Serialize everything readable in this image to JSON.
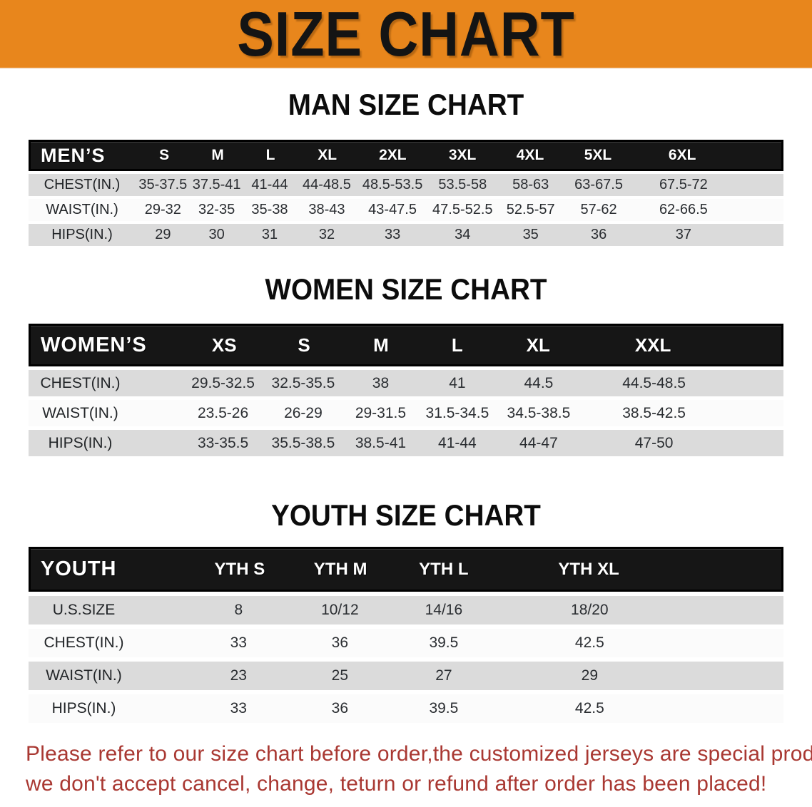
{
  "banner": {
    "title": "SIZE CHART",
    "bg_color": "#E8861C"
  },
  "sections": [
    {
      "id": "men",
      "heading": "MAN SIZE CHART",
      "corner": "MEN’S",
      "columns": [
        "S",
        "M",
        "L",
        "XL",
        "2XL",
        "3XL",
        "4XL",
        "5XL",
        "6XL"
      ],
      "rows": [
        {
          "label": "CHEST(IN.)",
          "values": [
            "35-37.5",
            "37.5-41",
            "41-44",
            "44-48.5",
            "48.5-53.5",
            "53.5-58",
            "58-63",
            "63-67.5",
            "67.5-72"
          ]
        },
        {
          "label": "WAIST(IN.)",
          "values": [
            "29-32",
            "32-35",
            "35-38",
            "38-43",
            "43-47.5",
            "47.5-52.5",
            "52.5-57",
            "57-62",
            "62-66.5"
          ]
        },
        {
          "label": "HIPS(IN.)",
          "values": [
            "29",
            "30",
            "31",
            "32",
            "33",
            "34",
            "35",
            "36",
            "37"
          ]
        }
      ]
    },
    {
      "id": "women",
      "heading": "WOMEN SIZE CHART",
      "corner": "WOMEN’S",
      "columns": [
        "XS",
        "S",
        "M",
        "L",
        "XL",
        "XXL"
      ],
      "rows": [
        {
          "label": "CHEST(IN.)",
          "values": [
            "29.5-32.5",
            "32.5-35.5",
            "38",
            "41",
            "44.5",
            "44.5-48.5"
          ]
        },
        {
          "label": "WAIST(IN.)",
          "values": [
            "23.5-26",
            "26-29",
            "29-31.5",
            "31.5-34.5",
            "34.5-38.5",
            "38.5-42.5"
          ]
        },
        {
          "label": "HIPS(IN.)",
          "values": [
            "33-35.5",
            "35.5-38.5",
            "38.5-41",
            "41-44",
            "44-47",
            "47-50"
          ]
        }
      ]
    },
    {
      "id": "youth",
      "heading": "YOUTH SIZE CHART",
      "corner": "YOUTH",
      "columns": [
        "YTH S",
        "YTH M",
        "YTH L",
        "YTH XL"
      ],
      "rows": [
        {
          "label": "U.S.SIZE",
          "values": [
            "8",
            "10/12",
            "14/16",
            "18/20"
          ]
        },
        {
          "label": "CHEST(IN.)",
          "values": [
            "33",
            "36",
            "39.5",
            "42.5"
          ]
        },
        {
          "label": "WAIST(IN.)",
          "values": [
            "23",
            "25",
            "27",
            "29"
          ]
        },
        {
          "label": "HIPS(IN.)",
          "values": [
            "33",
            "36",
            "39.5",
            "42.5"
          ]
        }
      ]
    }
  ],
  "disclaimer": {
    "color": "#A93832",
    "lines": [
      "Please refer to our size chart before order,the customized jerseys are special products,",
      "we don't accept cancel, change, teturn or refund after order has been placed!"
    ]
  }
}
